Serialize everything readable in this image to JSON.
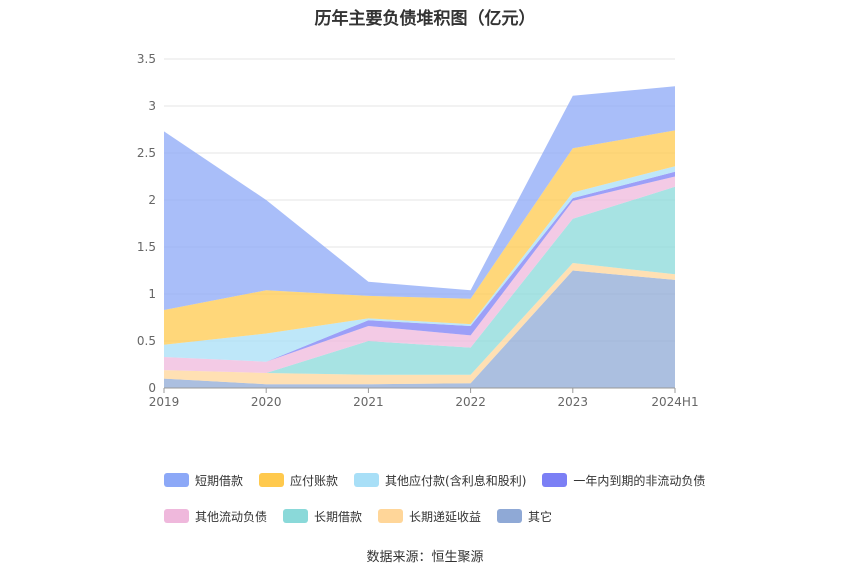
{
  "chart_data": {
    "type": "area",
    "title": "历年主要负债堆积图（亿元）",
    "categories": [
      "2019",
      "2020",
      "2021",
      "2022",
      "2023",
      "2024H1"
    ],
    "ylim": [
      0,
      3.5
    ],
    "yticks": [
      "0",
      "0.5",
      "1",
      "1.5",
      "2",
      "2.5",
      "3",
      "3.5"
    ],
    "grid": true,
    "stacked": true,
    "legend_position": "bottom",
    "series": [
      {
        "name": "其它",
        "color": "#8fa9d6",
        "values": [
          0.1,
          0.04,
          0.04,
          0.05,
          1.25,
          1.15
        ]
      },
      {
        "name": "长期递延收益",
        "color": "#ffd699",
        "values": [
          0.09,
          0.12,
          0.1,
          0.09,
          0.08,
          0.06
        ]
      },
      {
        "name": "长期借款",
        "color": "#8ad9d9",
        "values": [
          0.0,
          0.0,
          0.36,
          0.29,
          0.47,
          0.93
        ]
      },
      {
        "name": "其他流动负债",
        "color": "#efb8dc",
        "values": [
          0.14,
          0.12,
          0.16,
          0.13,
          0.19,
          0.11
        ]
      },
      {
        "name": "一年内到期的非流动负债",
        "color": "#7b7ff5",
        "values": [
          0.0,
          0.0,
          0.06,
          0.1,
          0.03,
          0.05
        ]
      },
      {
        "name": "其他应付款(含利息和股利)",
        "color": "#a8dff7",
        "values": [
          0.13,
          0.3,
          0.02,
          0.02,
          0.06,
          0.06
        ]
      },
      {
        "name": "应付账款",
        "color": "#ffc94d",
        "values": [
          0.37,
          0.46,
          0.24,
          0.27,
          0.47,
          0.38
        ]
      },
      {
        "name": "短期借款",
        "color": "#8ca8f7",
        "values": [
          1.9,
          0.96,
          0.15,
          0.09,
          0.56,
          0.47
        ]
      }
    ],
    "legend_order": [
      "短期借款",
      "应付账款",
      "其他应付款(含利息和股利)",
      "一年内到期的非流动负债",
      "其他流动负债",
      "长期借款",
      "长期递延收益",
      "其它"
    ]
  },
  "source": "数据来源：恒生聚源"
}
